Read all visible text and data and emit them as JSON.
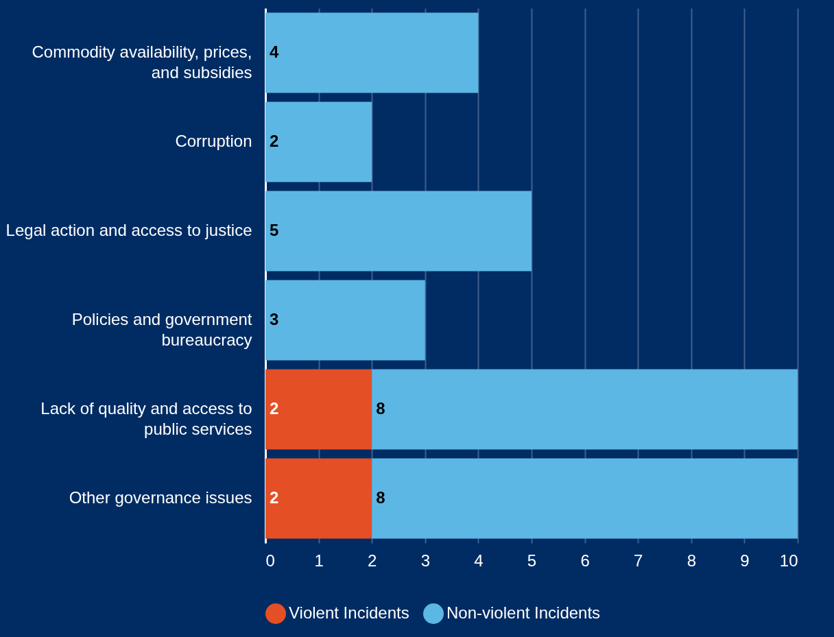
{
  "chart_data": {
    "type": "bar",
    "orientation": "horizontal",
    "stacked": true,
    "categories": [
      "Commodity availability, prices, and subsidies",
      "Corruption",
      "Legal action and access to justice",
      "Policies and government bureaucracy",
      "Lack of quality and access to public services",
      "Other governance issues"
    ],
    "series": [
      {
        "name": "Violent Incidents",
        "color": "#e44f26",
        "values": [
          null,
          null,
          null,
          null,
          2,
          2
        ]
      },
      {
        "name": "Non-violent Incidents",
        "color": "#5db7e5",
        "values": [
          4,
          2,
          5,
          3,
          8,
          8
        ]
      }
    ],
    "xlim": [
      0,
      10
    ],
    "xticks": [
      0,
      1,
      2,
      3,
      4,
      5,
      6,
      7,
      8,
      9,
      10
    ],
    "grid": "x",
    "legend": "bottom",
    "data_labels": true
  }
}
